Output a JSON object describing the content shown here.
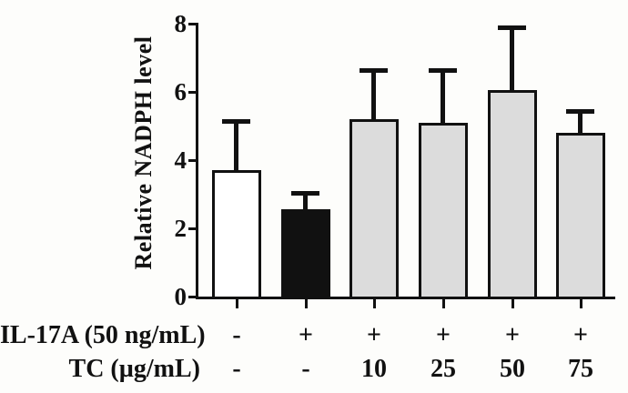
{
  "figure": {
    "background": "#fdfdfb",
    "ink_color": "#111111",
    "gray_fill": "#dcdcdc",
    "white_fill": "#ffffff"
  },
  "chart_data": {
    "type": "bar",
    "title": "",
    "xlabel": "",
    "ylabel": "Relative NADPH level",
    "ylim": [
      0,
      8
    ],
    "yticks": [
      0,
      2,
      4,
      6,
      8
    ],
    "grid": false,
    "legend": "none",
    "error_bars": "upper SD only, capped",
    "bars": [
      {
        "value": 3.7,
        "error": 1.5,
        "fill": "#ffffff"
      },
      {
        "value": 2.55,
        "error": 0.55,
        "fill": "#111111"
      },
      {
        "value": 5.2,
        "error": 1.5,
        "fill": "#dcdcdc"
      },
      {
        "value": 5.1,
        "error": 1.6,
        "fill": "#dcdcdc"
      },
      {
        "value": 6.05,
        "error": 1.9,
        "fill": "#dcdcdc"
      },
      {
        "value": 4.8,
        "error": 0.7,
        "fill": "#dcdcdc"
      }
    ],
    "x_condition_rows": [
      {
        "label": "IL-17A (50 ng/mL)",
        "values": [
          "-",
          "+",
          "+",
          "+",
          "+",
          "+"
        ]
      },
      {
        "label": "TC (µg/mL)",
        "values": [
          "-",
          "-",
          "10",
          "25",
          "50",
          "75"
        ]
      }
    ]
  }
}
